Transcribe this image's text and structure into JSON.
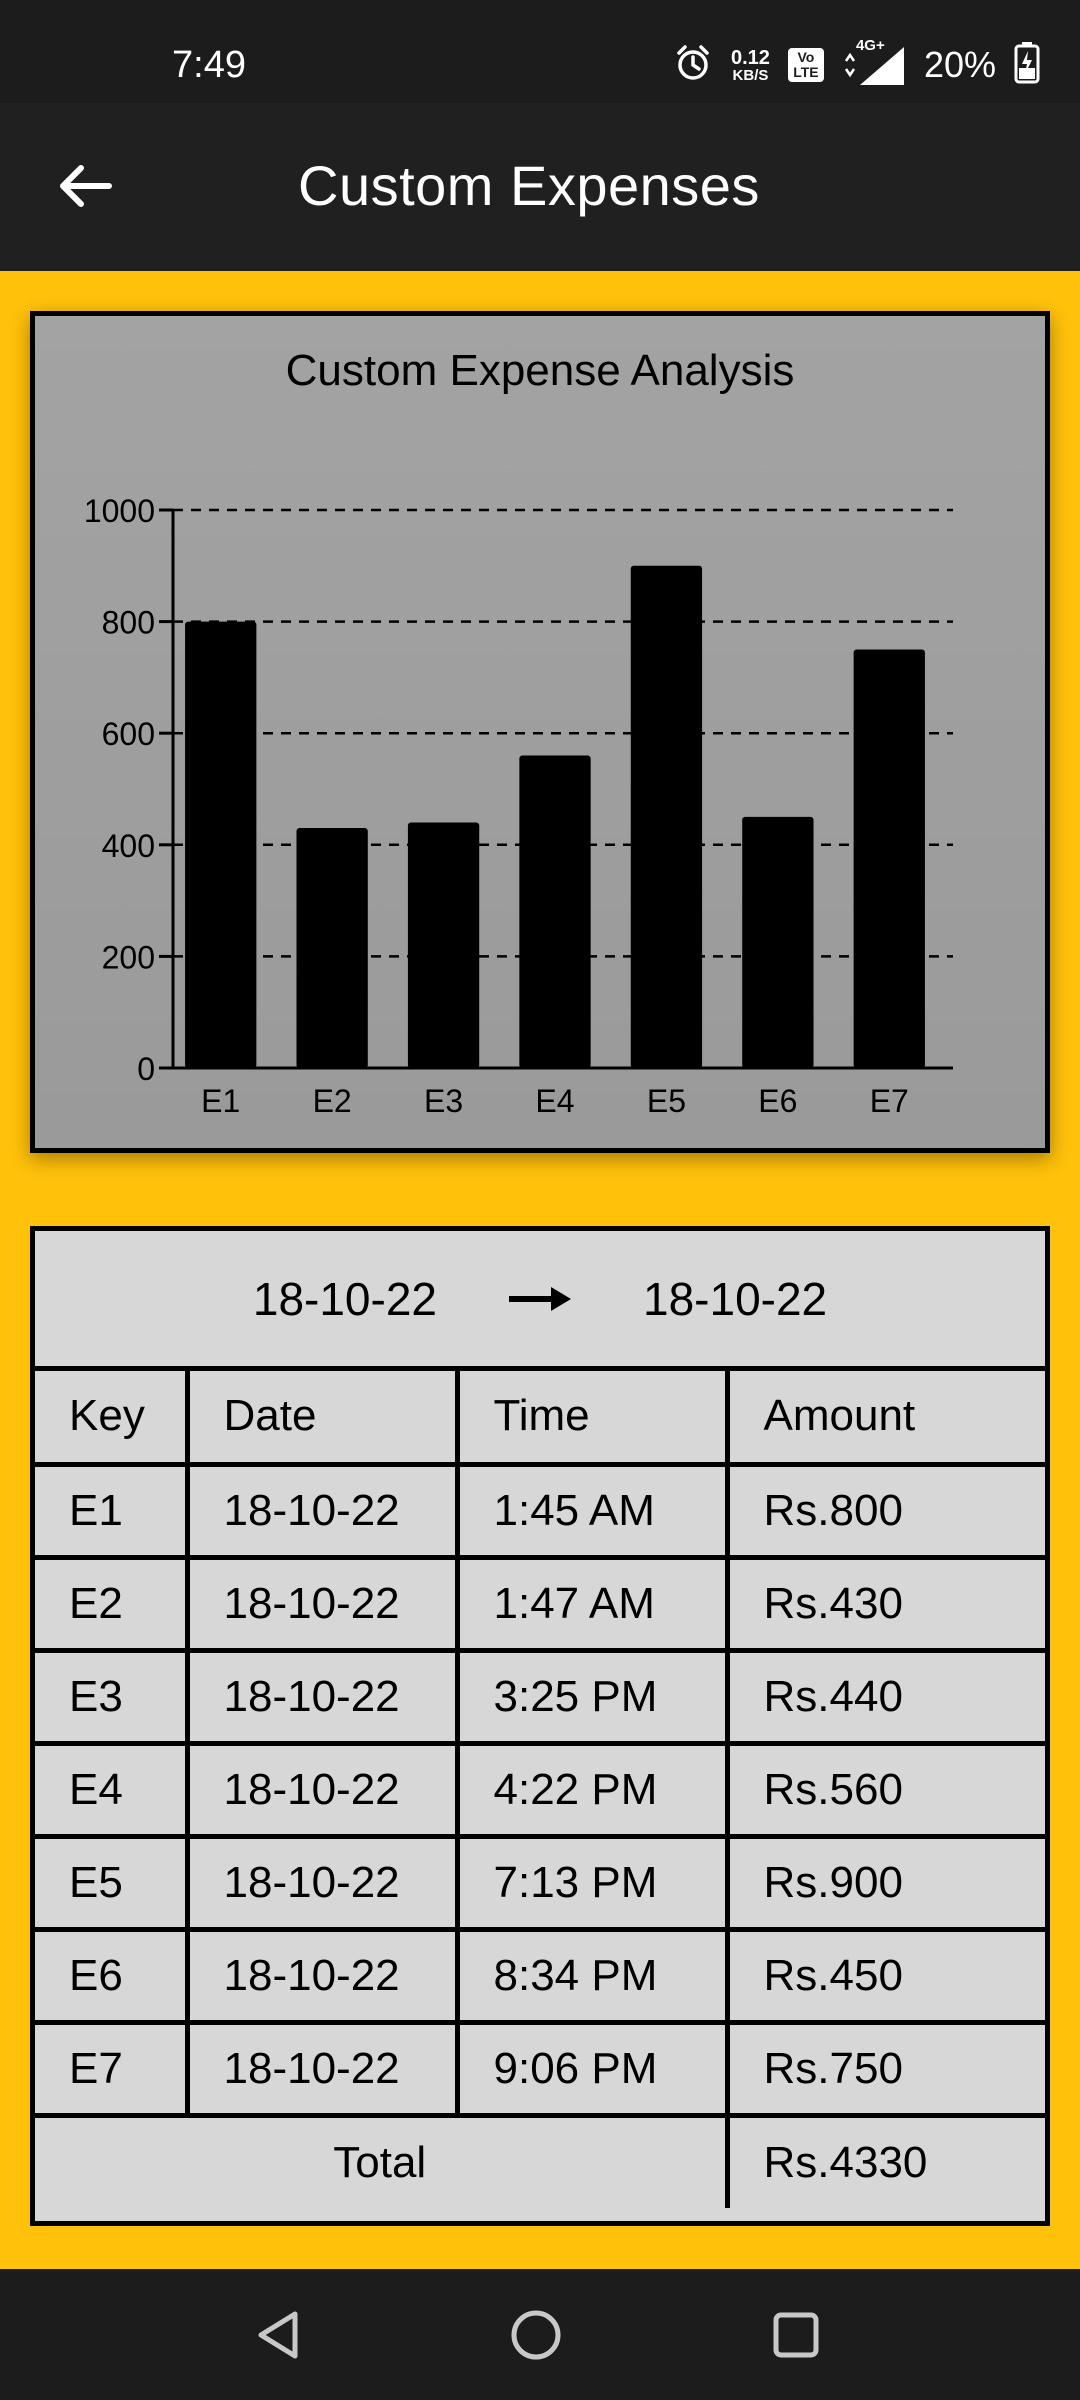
{
  "status_bar": {
    "time": "7:49",
    "net_speed_value": "0.12",
    "net_speed_unit": "KB/S",
    "volte_line1": "Vo",
    "volte_line2": "LTE",
    "network": "4G+",
    "battery": "20%"
  },
  "app_bar": {
    "title": "Custom Expenses"
  },
  "chart_data": {
    "type": "bar",
    "title": "Custom Expense Analysis",
    "categories": [
      "E1",
      "E2",
      "E3",
      "E4",
      "E5",
      "E6",
      "E7"
    ],
    "values": [
      800,
      430,
      440,
      560,
      900,
      450,
      750
    ],
    "ylim": [
      0,
      1000
    ],
    "yticks": [
      0,
      200,
      400,
      600,
      800,
      1000
    ],
    "grid": "dashed horizontal",
    "bar_color": "#000000"
  },
  "table": {
    "range_start": "18-10-22",
    "range_end": "18-10-22",
    "headers": [
      "Key",
      "Date",
      "Time",
      "Amount"
    ],
    "rows": [
      [
        "E1",
        "18-10-22",
        "1:45 AM",
        "Rs.800"
      ],
      [
        "E2",
        "18-10-22",
        "1:47 AM",
        "Rs.430"
      ],
      [
        "E3",
        "18-10-22",
        "3:25 PM",
        "Rs.440"
      ],
      [
        "E4",
        "18-10-22",
        "4:22 PM",
        "Rs.560"
      ],
      [
        "E5",
        "18-10-22",
        "7:13 PM",
        "Rs.900"
      ],
      [
        "E6",
        "18-10-22",
        "8:34 PM",
        "Rs.450"
      ],
      [
        "E7",
        "18-10-22",
        "9:06 PM",
        "Rs.750"
      ]
    ],
    "total_label": "Total",
    "total_value": "Rs.4330"
  },
  "colors": {
    "accent": "#FFC10A",
    "app_bar": "#202020",
    "table_bg": "#D7D7D7",
    "chart_bg": "#9E9E9E"
  }
}
